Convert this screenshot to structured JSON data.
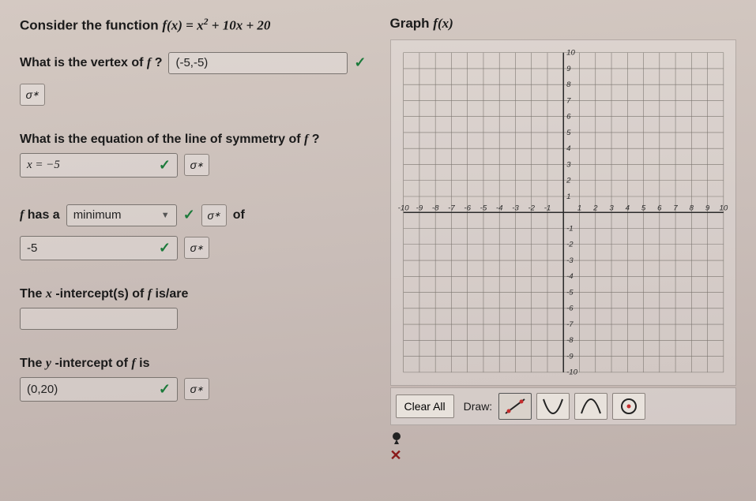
{
  "left": {
    "prompt_prefix": "Consider the function ",
    "func_lhs": "f(x) = ",
    "func_rhs": "x",
    "func_exp": "2",
    "func_tail": " + 10x + 20",
    "q1_label_pre": "What is the vertex of ",
    "q1_label_f": "f",
    "q1_label_post": " ?",
    "q1_value": "(-5,-5)",
    "q2_label_pre": "What is the equation of the line of symmetry of ",
    "q2_label_f": "f",
    "q2_label_post": " ?",
    "q2_value": "x = −5",
    "q3_f": "f",
    "q3_has_a": " has a ",
    "q3_select": "minimum",
    "q3_of": "of",
    "q3_value": "-5",
    "q4_pre": "The ",
    "q4_x": "x",
    "q4_post": " -intercept(s) of ",
    "q4_f": "f",
    "q4_tail": " is/are",
    "q4_value": "",
    "q5_pre": "The ",
    "q5_y": "y",
    "q5_post": " -intercept of ",
    "q5_f": "f",
    "q5_tail": " is",
    "q5_value": "(0,20)",
    "sigma": "σ",
    "sigma_sup": "∗",
    "check": "✓"
  },
  "right": {
    "title_pre": "Graph ",
    "title_f": "f(x)",
    "clear_all": "Clear All",
    "draw_label": "Draw:",
    "x_mark": "✕",
    "axis": {
      "min": -10,
      "max": 10,
      "step": 1,
      "grid_color": "#7a746e",
      "axis_color": "#2b2b2b",
      "label_color": "#2b2b2b"
    },
    "tools": [
      {
        "name": "line-tool",
        "type": "line"
      },
      {
        "name": "parabola-up-tool",
        "type": "parab-up"
      },
      {
        "name": "parabola-down-tool",
        "type": "parab-down"
      },
      {
        "name": "point-tool",
        "type": "point"
      }
    ]
  },
  "colors": {
    "check": "#1b7a3a",
    "tool_accent": "#c42d2d"
  }
}
